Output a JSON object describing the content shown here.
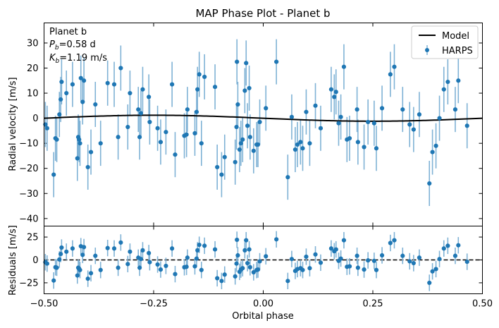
{
  "chart_data": [
    {
      "type": "scatter",
      "title": "MAP Phase Plot - Planet b",
      "ylabel": "Radial velocity [m/s]",
      "xlim": [
        -0.5,
        0.5
      ],
      "ylim": [
        -43,
        38
      ],
      "yticks": [
        -40,
        -30,
        -20,
        -10,
        0,
        10,
        20,
        30
      ],
      "grid": false,
      "legend_placement": "top-right",
      "annotation": {
        "line1": "Planet b",
        "line2_prefix": "P",
        "line2_sub": "b",
        "line2_value": "=0.58 d",
        "line3_prefix": "K",
        "line3_sub": "b",
        "line3_value": "=1.19 m/s"
      },
      "legend": [
        {
          "label": "Model",
          "kind": "line",
          "color": "#000000"
        },
        {
          "label": "HARPS",
          "kind": "errorbar",
          "color": "#1f77b4"
        }
      ],
      "model": {
        "name": "Model",
        "color": "#000000",
        "amplitude": 1.19,
        "x": [
          -0.5,
          -0.4,
          -0.3,
          -0.25,
          -0.2,
          -0.1,
          0.0,
          0.1,
          0.2,
          0.25,
          0.3,
          0.4,
          0.5
        ],
        "y": [
          0.0,
          0.7,
          1.13,
          1.19,
          1.13,
          0.7,
          0.0,
          -0.7,
          -1.13,
          -1.19,
          -1.13,
          -0.7,
          0.0
        ]
      },
      "series": [
        {
          "name": "HARPS",
          "color": "#1f77b4",
          "errorbar_color": "#7fb2d5",
          "x": [
            -0.497,
            -0.493,
            -0.478,
            -0.474,
            -0.471,
            -0.465,
            -0.462,
            -0.46,
            -0.449,
            -0.435,
            -0.424,
            -0.422,
            -0.42,
            -0.418,
            -0.416,
            -0.412,
            -0.409,
            -0.4,
            -0.393,
            -0.383,
            -0.371,
            -0.355,
            -0.34,
            -0.331,
            -0.325,
            -0.309,
            -0.304,
            -0.285,
            -0.282,
            -0.279,
            -0.275,
            -0.261,
            -0.259,
            -0.241,
            -0.234,
            -0.222,
            -0.208,
            -0.201,
            -0.18,
            -0.175,
            -0.173,
            -0.156,
            -0.152,
            -0.15,
            -0.146,
            -0.141,
            -0.134,
            -0.11,
            -0.105,
            -0.095,
            -0.088,
            -0.064,
            -0.061,
            -0.06,
            -0.058,
            -0.054,
            -0.051,
            -0.047,
            -0.042,
            -0.039,
            -0.036,
            -0.032,
            -0.03,
            -0.022,
            -0.015,
            -0.012,
            -0.008,
            0.006,
            0.03,
            0.056,
            0.065,
            0.073,
            0.078,
            0.085,
            0.09,
            0.098,
            0.106,
            0.119,
            0.131,
            0.155,
            0.162,
            0.166,
            0.172,
            0.177,
            0.184,
            0.191,
            0.197,
            0.214,
            0.216,
            0.23,
            0.239,
            0.253,
            0.258,
            0.271,
            0.29,
            0.299,
            0.318,
            0.334,
            0.343,
            0.356,
            0.379,
            0.386,
            0.394,
            0.402,
            0.412,
            0.421,
            0.438,
            0.445,
            0.465
          ],
          "y": [
            -2.5,
            -4.0,
            -22.5,
            -8.0,
            -8.5,
            1.5,
            7.5,
            14.5,
            10.0,
            13.5,
            -16.0,
            -7.5,
            -8.5,
            -10.0,
            16.0,
            6.5,
            15.0,
            -19.5,
            -13.5,
            5.5,
            -10.0,
            14.0,
            13.5,
            -7.5,
            20.0,
            -3.5,
            10.0,
            3.5,
            -7.5,
            2.0,
            11.5,
            8.5,
            -1.5,
            -4.0,
            -9.5,
            -5.5,
            13.5,
            -14.5,
            -7.0,
            -6.5,
            3.5,
            -6.0,
            2.5,
            11.5,
            17.5,
            -10.0,
            16.5,
            12.5,
            -19.5,
            -22.5,
            -15.5,
            -17.5,
            -3.5,
            22.5,
            5.5,
            -12.5,
            -10.0,
            -8.5,
            11.0,
            22.0,
            -3.0,
            12.0,
            -7.5,
            -13.0,
            -10.5,
            -10.5,
            -1.5,
            4.0,
            22.5,
            -23.5,
            0.5,
            -12.5,
            -10.5,
            -9.5,
            -12.0,
            2.5,
            -10.0,
            5.0,
            -4.0,
            11.5,
            8.5,
            10.5,
            -2.0,
            0.5,
            20.5,
            -8.5,
            -8.0,
            3.5,
            -9.5,
            -11.5,
            -1.5,
            -2.0,
            -12.0,
            4.0,
            17.5,
            20.5,
            3.5,
            -2.5,
            -4.5,
            1.5,
            -26.0,
            -13.5,
            -11.0,
            0.0,
            11.5,
            14.5,
            3.5,
            15.0,
            -3.0
          ],
          "yerr": 9.0
        }
      ]
    },
    {
      "type": "scatter",
      "xlabel": "Orbital phase",
      "ylabel": "Residuals [m/s]",
      "xlim": [
        -0.5,
        0.5
      ],
      "ylim": [
        -37,
        37
      ],
      "xticks": [
        -0.5,
        -0.25,
        0.0,
        0.25,
        0.5
      ],
      "xtick_labels": [
        "−0.50",
        "−0.25",
        "0.00",
        "0.25",
        "0.50"
      ],
      "yticks": [
        -25,
        0,
        25
      ],
      "ytick_labels": [
        "−25",
        "0",
        "25"
      ],
      "zero_line": {
        "y": 0,
        "style": "dashed",
        "color": "#000000"
      },
      "series": [
        {
          "name": "HARPS",
          "color": "#1f77b4",
          "errorbar_color": "#7fb2d5",
          "x": [
            -0.497,
            -0.493,
            -0.478,
            -0.474,
            -0.471,
            -0.465,
            -0.462,
            -0.46,
            -0.449,
            -0.435,
            -0.424,
            -0.422,
            -0.42,
            -0.418,
            -0.416,
            -0.412,
            -0.409,
            -0.4,
            -0.393,
            -0.383,
            -0.371,
            -0.355,
            -0.34,
            -0.331,
            -0.325,
            -0.309,
            -0.304,
            -0.285,
            -0.282,
            -0.279,
            -0.275,
            -0.261,
            -0.259,
            -0.241,
            -0.234,
            -0.222,
            -0.208,
            -0.201,
            -0.18,
            -0.175,
            -0.173,
            -0.156,
            -0.152,
            -0.15,
            -0.146,
            -0.141,
            -0.134,
            -0.11,
            -0.105,
            -0.095,
            -0.088,
            -0.064,
            -0.061,
            -0.06,
            -0.058,
            -0.054,
            -0.051,
            -0.047,
            -0.042,
            -0.039,
            -0.036,
            -0.032,
            -0.03,
            -0.022,
            -0.015,
            -0.012,
            -0.008,
            0.006,
            0.03,
            0.056,
            0.065,
            0.073,
            0.078,
            0.085,
            0.09,
            0.098,
            0.106,
            0.119,
            0.131,
            0.155,
            0.162,
            0.166,
            0.172,
            0.177,
            0.184,
            0.191,
            0.197,
            0.214,
            0.216,
            0.23,
            0.239,
            0.253,
            0.258,
            0.271,
            0.29,
            0.299,
            0.318,
            0.334,
            0.343,
            0.356,
            0.379,
            0.386,
            0.394,
            0.402,
            0.412,
            0.421,
            0.438,
            0.445,
            0.465
          ],
          "y": [
            -2.5,
            -4.0,
            -22.5,
            -8.0,
            -8.5,
            0.5,
            6.5,
            13.5,
            9.0,
            12.5,
            -17.0,
            -8.5,
            -9.5,
            -11.0,
            15.0,
            5.5,
            14.0,
            -20.5,
            -14.5,
            4.5,
            -11.0,
            13.0,
            12.5,
            -8.5,
            19.0,
            -4.5,
            9.0,
            2.5,
            -8.5,
            1.0,
            10.5,
            7.5,
            -2.5,
            -5.0,
            -10.5,
            -6.5,
            12.5,
            -15.5,
            -8.0,
            -7.5,
            2.5,
            -7.0,
            1.5,
            10.5,
            16.5,
            -11.0,
            15.5,
            11.5,
            -20.0,
            -23.0,
            -16.0,
            -18.0,
            -4.0,
            22.0,
            5.0,
            -13.0,
            -10.5,
            -9.0,
            10.5,
            21.5,
            -3.5,
            11.5,
            -8.0,
            -13.5,
            -11.0,
            -10.5,
            -1.5,
            4.0,
            22.5,
            -23.0,
            1.0,
            -12.0,
            -10.0,
            -9.0,
            -11.0,
            3.5,
            -9.0,
            6.0,
            -3.0,
            12.5,
            9.5,
            11.5,
            -1.0,
            1.5,
            21.5,
            -7.5,
            -7.0,
            4.5,
            -8.5,
            -10.5,
            -0.5,
            -1.0,
            -11.0,
            5.0,
            18.5,
            21.5,
            4.5,
            -1.5,
            -3.5,
            2.5,
            -25.0,
            -12.5,
            -10.0,
            1.0,
            12.5,
            15.5,
            4.5,
            16.0,
            -2.0
          ],
          "yerr": 9.0
        }
      ]
    }
  ]
}
